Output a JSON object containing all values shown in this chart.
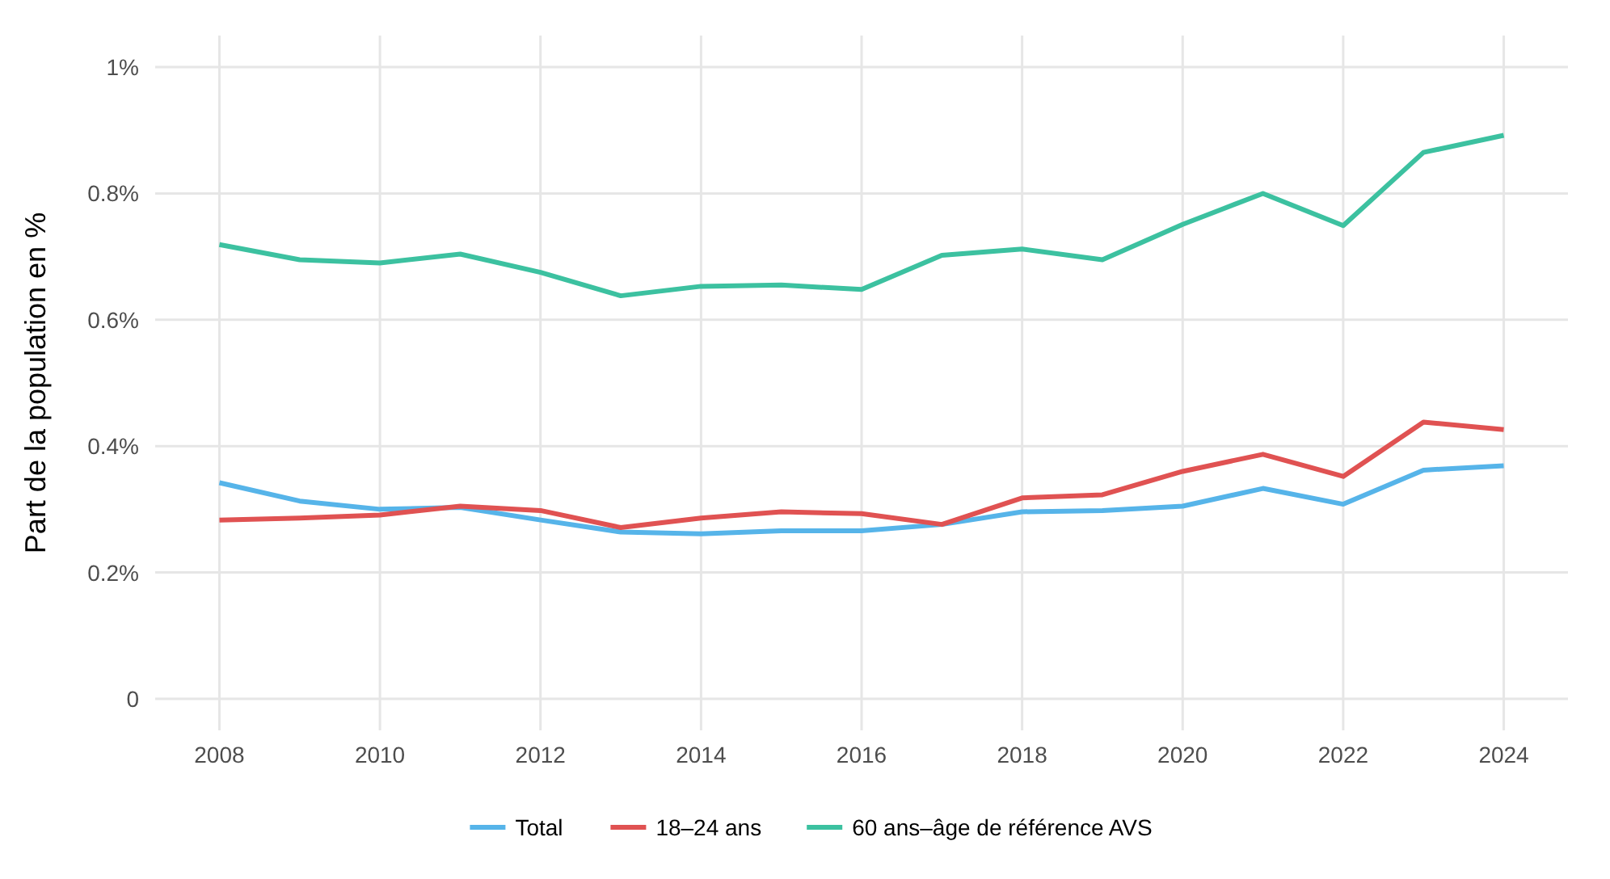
{
  "chart_data": {
    "type": "line",
    "ylabel": "Part de la population en %",
    "x": [
      2008,
      2009,
      2010,
      2011,
      2012,
      2013,
      2014,
      2015,
      2016,
      2017,
      2018,
      2019,
      2020,
      2021,
      2022,
      2023,
      2024
    ],
    "series": [
      {
        "name": "Total",
        "color": "#56b4e9",
        "values": [
          0.342,
          0.313,
          0.3,
          0.303,
          0.283,
          0.264,
          0.261,
          0.266,
          0.266,
          0.276,
          0.296,
          0.298,
          0.305,
          0.333,
          0.308,
          0.362,
          0.369
        ]
      },
      {
        "name": "18–24 ans",
        "color": "#e05252",
        "values": [
          0.283,
          0.286,
          0.291,
          0.305,
          0.298,
          0.271,
          0.286,
          0.296,
          0.293,
          0.276,
          0.318,
          0.323,
          0.36,
          0.387,
          0.352,
          0.438,
          0.426
        ]
      },
      {
        "name": "60 ans–âge de référence AVS",
        "color": "#3cc1a0",
        "values": [
          0.719,
          0.695,
          0.69,
          0.704,
          0.675,
          0.638,
          0.653,
          0.655,
          0.648,
          0.702,
          0.712,
          0.695,
          0.751,
          0.8,
          0.749,
          0.865,
          0.892
        ]
      }
    ],
    "xlim": [
      2007.2,
      2024.8
    ],
    "xticks": [
      2008,
      2010,
      2012,
      2014,
      2016,
      2018,
      2020,
      2022,
      2024
    ],
    "ylim": [
      -0.05,
      1.05
    ],
    "yticks": [
      0,
      {
        "value": 0.2,
        "label": "0.2%"
      },
      {
        "value": 0.4,
        "label": "0.4%"
      },
      {
        "value": 0.6,
        "label": "0.6%"
      },
      {
        "value": 0.8,
        "label": "0.8%"
      },
      {
        "value": 1,
        "label": "1%"
      }
    ],
    "grid": true,
    "legend": "bottom",
    "marker": "none",
    "line_style": "solid"
  }
}
